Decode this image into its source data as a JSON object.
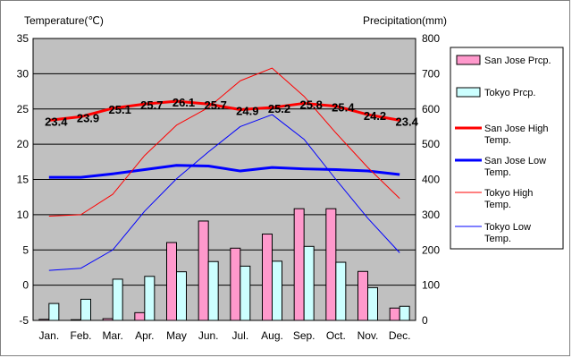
{
  "chart_data": {
    "type": "bar+line",
    "categories": [
      "Jan.",
      "Feb.",
      "Mar.",
      "Apr.",
      "May",
      "Jun.",
      "Jul.",
      "Aug.",
      "Sep.",
      "Oct.",
      "Nov.",
      "Dec."
    ],
    "left_axis": {
      "label": "Temperature(℃)",
      "ylim": [
        -5,
        35
      ],
      "ticks": [
        -5,
        0,
        5,
        10,
        15,
        20,
        25,
        30,
        35
      ]
    },
    "right_axis": {
      "label": "Precipitation(mm)",
      "ylim": [
        0,
        800
      ],
      "ticks": [
        0,
        100,
        200,
        300,
        400,
        500,
        600,
        700,
        800
      ]
    },
    "bar_series": [
      {
        "name": "San Jose Prcp.",
        "color": "#ff99cc",
        "values": [
          3,
          2,
          5,
          22,
          221,
          282,
          205,
          245,
          317,
          317,
          139,
          35
        ]
      },
      {
        "name": "Tokyo Prcp.",
        "color": "#ccffff",
        "values": [
          48,
          60,
          117,
          125,
          138,
          167,
          154,
          168,
          210,
          165,
          93,
          40
        ]
      }
    ],
    "line_series": [
      {
        "name": "San Jose High Temp.",
        "color": "#ff0000",
        "width": "thick",
        "values": [
          23.4,
          23.9,
          25.1,
          25.7,
          26.1,
          25.7,
          24.9,
          25.2,
          25.8,
          25.4,
          24.2,
          23.4
        ]
      },
      {
        "name": "San Jose Low Temp.",
        "color": "#0000ff",
        "width": "thick",
        "values": [
          15.3,
          15.3,
          15.8,
          16.4,
          17.0,
          16.9,
          16.2,
          16.7,
          16.5,
          16.4,
          16.2,
          15.7
        ]
      },
      {
        "name": "Tokyo High Temp.",
        "color": "#ff0000",
        "width": "thin",
        "values": [
          9.8,
          10.0,
          12.9,
          18.4,
          22.7,
          25.2,
          29.0,
          30.8,
          26.8,
          21.6,
          16.7,
          12.3
        ]
      },
      {
        "name": "Tokyo Low Temp.",
        "color": "#0000ff",
        "width": "thin",
        "values": [
          2.1,
          2.4,
          5.0,
          10.5,
          15.1,
          18.9,
          22.5,
          24.2,
          20.7,
          15.0,
          9.5,
          4.6
        ]
      }
    ],
    "data_labels": [
      "23.4",
      "23.9",
      "25.1",
      "25.7",
      "26.1",
      "25.7",
      "24.9",
      "25.2",
      "25.8",
      "25.4",
      "24.2",
      "23.4"
    ],
    "legend": [
      "San Jose Prcp.",
      "Tokyo Prcp.",
      "San Jose High Temp.",
      "San Jose Low Temp.",
      "Tokyo High Temp.",
      "Tokyo Low Temp."
    ],
    "legend_position": "right",
    "plot_background": "#c0c0c0",
    "grid": true
  }
}
